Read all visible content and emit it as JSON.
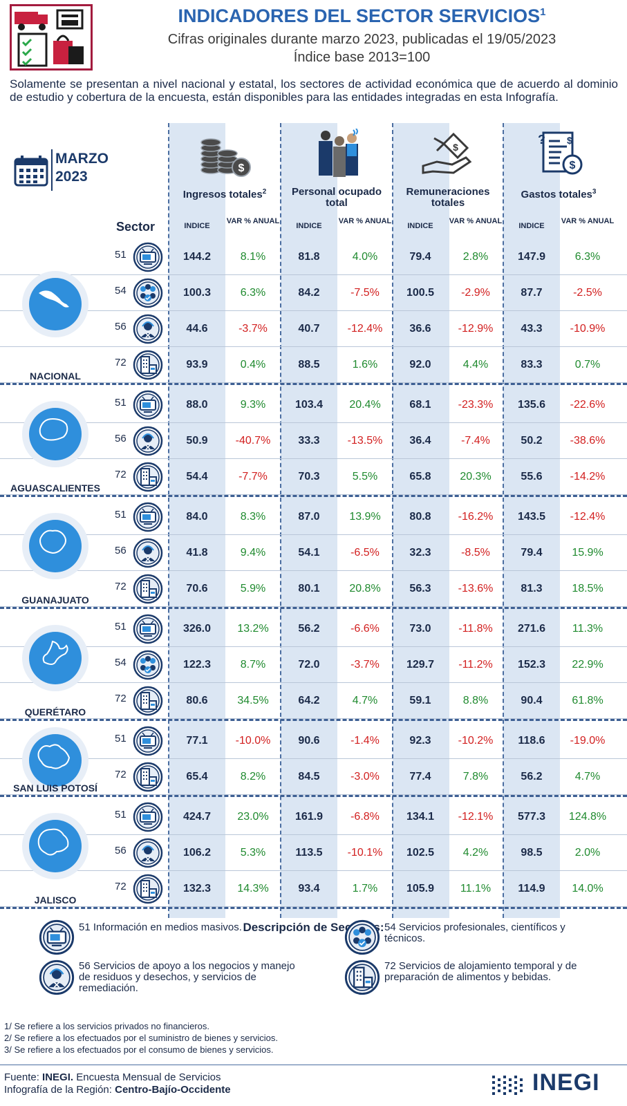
{
  "header": {
    "title": "INDICADORES DEL SECTOR SERVICIOS",
    "title_sup": "1",
    "subtitle": "Cifras originales durante marzo 2023, publicadas el 19/05/2023",
    "base": "Índice base 2013=100"
  },
  "intro": "Solamente se presentan a nivel nacional y estatal, los sectores de actividad económica que de acuerdo al dominio de estudio y cobertura de la encuesta, están disponibles para las entidades integradas en esta Infografía.",
  "period": {
    "month": "MARZO",
    "year": "2023"
  },
  "sector_label": "Sector",
  "metrics": [
    {
      "title": "Ingresos totales",
      "sup": "2",
      "icon": "coins-icon"
    },
    {
      "title": "Personal ocupado total",
      "sup": "",
      "icon": "workers-icon"
    },
    {
      "title": "Remuneraciones totales",
      "sup": "",
      "icon": "payment-hand-icon"
    },
    {
      "title": "Gastos totales",
      "sup": "3",
      "icon": "invoice-icon"
    }
  ],
  "subheads": {
    "index": "INDICE",
    "var": "VAR % ANUAL"
  },
  "groups": [
    {
      "name": "NACIONAL",
      "rows": [
        {
          "sector": "51",
          "icon": "tv-icon",
          "values": [
            "144.2",
            "8.1%",
            "81.8",
            "4.0%",
            "79.4",
            "2.8%",
            "147.9",
            "6.3%"
          ]
        },
        {
          "sector": "54",
          "icon": "team-icon",
          "values": [
            "100.3",
            "6.3%",
            "84.2",
            "-7.5%",
            "100.5",
            "-2.9%",
            "87.7",
            "-2.5%"
          ]
        },
        {
          "sector": "56",
          "icon": "support-agent-icon",
          "values": [
            "44.6",
            "-3.7%",
            "40.7",
            "-12.4%",
            "36.6",
            "-12.9%",
            "43.3",
            "-10.9%"
          ]
        },
        {
          "sector": "72",
          "icon": "hotel-icon",
          "values": [
            "93.9",
            "0.4%",
            "88.5",
            "1.6%",
            "92.0",
            "4.4%",
            "83.3",
            "0.7%"
          ]
        }
      ]
    },
    {
      "name": "AGUASCALIENTES",
      "rows": [
        {
          "sector": "51",
          "icon": "tv-icon",
          "values": [
            "88.0",
            "9.3%",
            "103.4",
            "20.4%",
            "68.1",
            "-23.3%",
            "135.6",
            "-22.6%"
          ]
        },
        {
          "sector": "56",
          "icon": "support-agent-icon",
          "values": [
            "50.9",
            "-40.7%",
            "33.3",
            "-13.5%",
            "36.4",
            "-7.4%",
            "50.2",
            "-38.6%"
          ]
        },
        {
          "sector": "72",
          "icon": "hotel-icon",
          "values": [
            "54.4",
            "-7.7%",
            "70.3",
            "5.5%",
            "65.8",
            "20.3%",
            "55.6",
            "-14.2%"
          ]
        }
      ]
    },
    {
      "name": "GUANAJUATO",
      "rows": [
        {
          "sector": "51",
          "icon": "tv-icon",
          "values": [
            "84.0",
            "8.3%",
            "87.0",
            "13.9%",
            "80.8",
            "-16.2%",
            "143.5",
            "-12.4%"
          ]
        },
        {
          "sector": "56",
          "icon": "support-agent-icon",
          "values": [
            "41.8",
            "9.4%",
            "54.1",
            "-6.5%",
            "32.3",
            "-8.5%",
            "79.4",
            "15.9%"
          ]
        },
        {
          "sector": "72",
          "icon": "hotel-icon",
          "values": [
            "70.6",
            "5.9%",
            "80.1",
            "20.8%",
            "56.3",
            "-13.6%",
            "81.3",
            "18.5%"
          ]
        }
      ]
    },
    {
      "name": "QUERÉTARO",
      "rows": [
        {
          "sector": "51",
          "icon": "tv-icon",
          "values": [
            "326.0",
            "13.2%",
            "56.2",
            "-6.6%",
            "73.0",
            "-11.8%",
            "271.6",
            "11.3%"
          ]
        },
        {
          "sector": "54",
          "icon": "team-icon",
          "values": [
            "122.3",
            "8.7%",
            "72.0",
            "-3.7%",
            "129.7",
            "-11.2%",
            "152.3",
            "22.9%"
          ]
        },
        {
          "sector": "72",
          "icon": "hotel-icon",
          "values": [
            "80.6",
            "34.5%",
            "64.2",
            "4.7%",
            "59.1",
            "8.8%",
            "90.4",
            "61.8%"
          ]
        }
      ]
    },
    {
      "name": "SAN LUIS POTOSÍ",
      "rows": [
        {
          "sector": "51",
          "icon": "tv-icon",
          "values": [
            "77.1",
            "-10.0%",
            "90.6",
            "-1.4%",
            "92.3",
            "-10.2%",
            "118.6",
            "-19.0%"
          ]
        },
        {
          "sector": "72",
          "icon": "hotel-icon",
          "values": [
            "65.4",
            "8.2%",
            "84.5",
            "-3.0%",
            "77.4",
            "7.8%",
            "56.2",
            "4.7%"
          ]
        }
      ]
    },
    {
      "name": "JALISCO",
      "rows": [
        {
          "sector": "51",
          "icon": "tv-icon",
          "values": [
            "424.7",
            "23.0%",
            "161.9",
            "-6.8%",
            "134.1",
            "-12.1%",
            "577.3",
            "124.8%"
          ]
        },
        {
          "sector": "56",
          "icon": "support-agent-icon",
          "values": [
            "106.2",
            "5.3%",
            "113.5",
            "-10.1%",
            "102.5",
            "4.2%",
            "98.5",
            "2.0%"
          ]
        },
        {
          "sector": "72",
          "icon": "hotel-icon",
          "values": [
            "132.3",
            "14.3%",
            "93.4",
            "1.7%",
            "105.9",
            "11.1%",
            "114.9",
            "14.0%"
          ]
        }
      ]
    }
  ],
  "descriptions": {
    "title": "Descripción de Sectores:",
    "items": [
      {
        "icon": "tv-icon",
        "text": "51 Información en medios masivos."
      },
      {
        "icon": "team-icon",
        "text": "54 Servicios profesionales, científicos y técnicos."
      },
      {
        "icon": "support-agent-icon",
        "text": "56 Servicios de apoyo a los negocios y manejo de residuos y desechos, y servicios de remediación."
      },
      {
        "icon": "hotel-icon",
        "text": "72 Servicios de alojamiento temporal y de preparación de alimentos y bebidas."
      }
    ]
  },
  "notes": [
    "1/ Se refiere a los servicios privados no financieros.",
    "2/ Se refiere a los efectuados por el suministro de bienes y servicios.",
    "3/ Se refiere a los efectuados por el consumo de bienes y servicios."
  ],
  "footer": {
    "source_label": "Fuente:",
    "source_org": "INEGI.",
    "source_text": "Encuesta Mensual de Servicios",
    "region_label": "Infografía de la Región:",
    "region": "Centro-Bajío-Occidente",
    "logo_text": "INEGI"
  },
  "colors": {
    "title_blue": "#2a64b0",
    "navy": "#1b2a48",
    "positive": "#1f8a2e",
    "negative": "#d21f1f",
    "column_bg": "#dbe6f3",
    "logo_red": "#a31b3e",
    "map_blue": "#2f8fdc"
  }
}
